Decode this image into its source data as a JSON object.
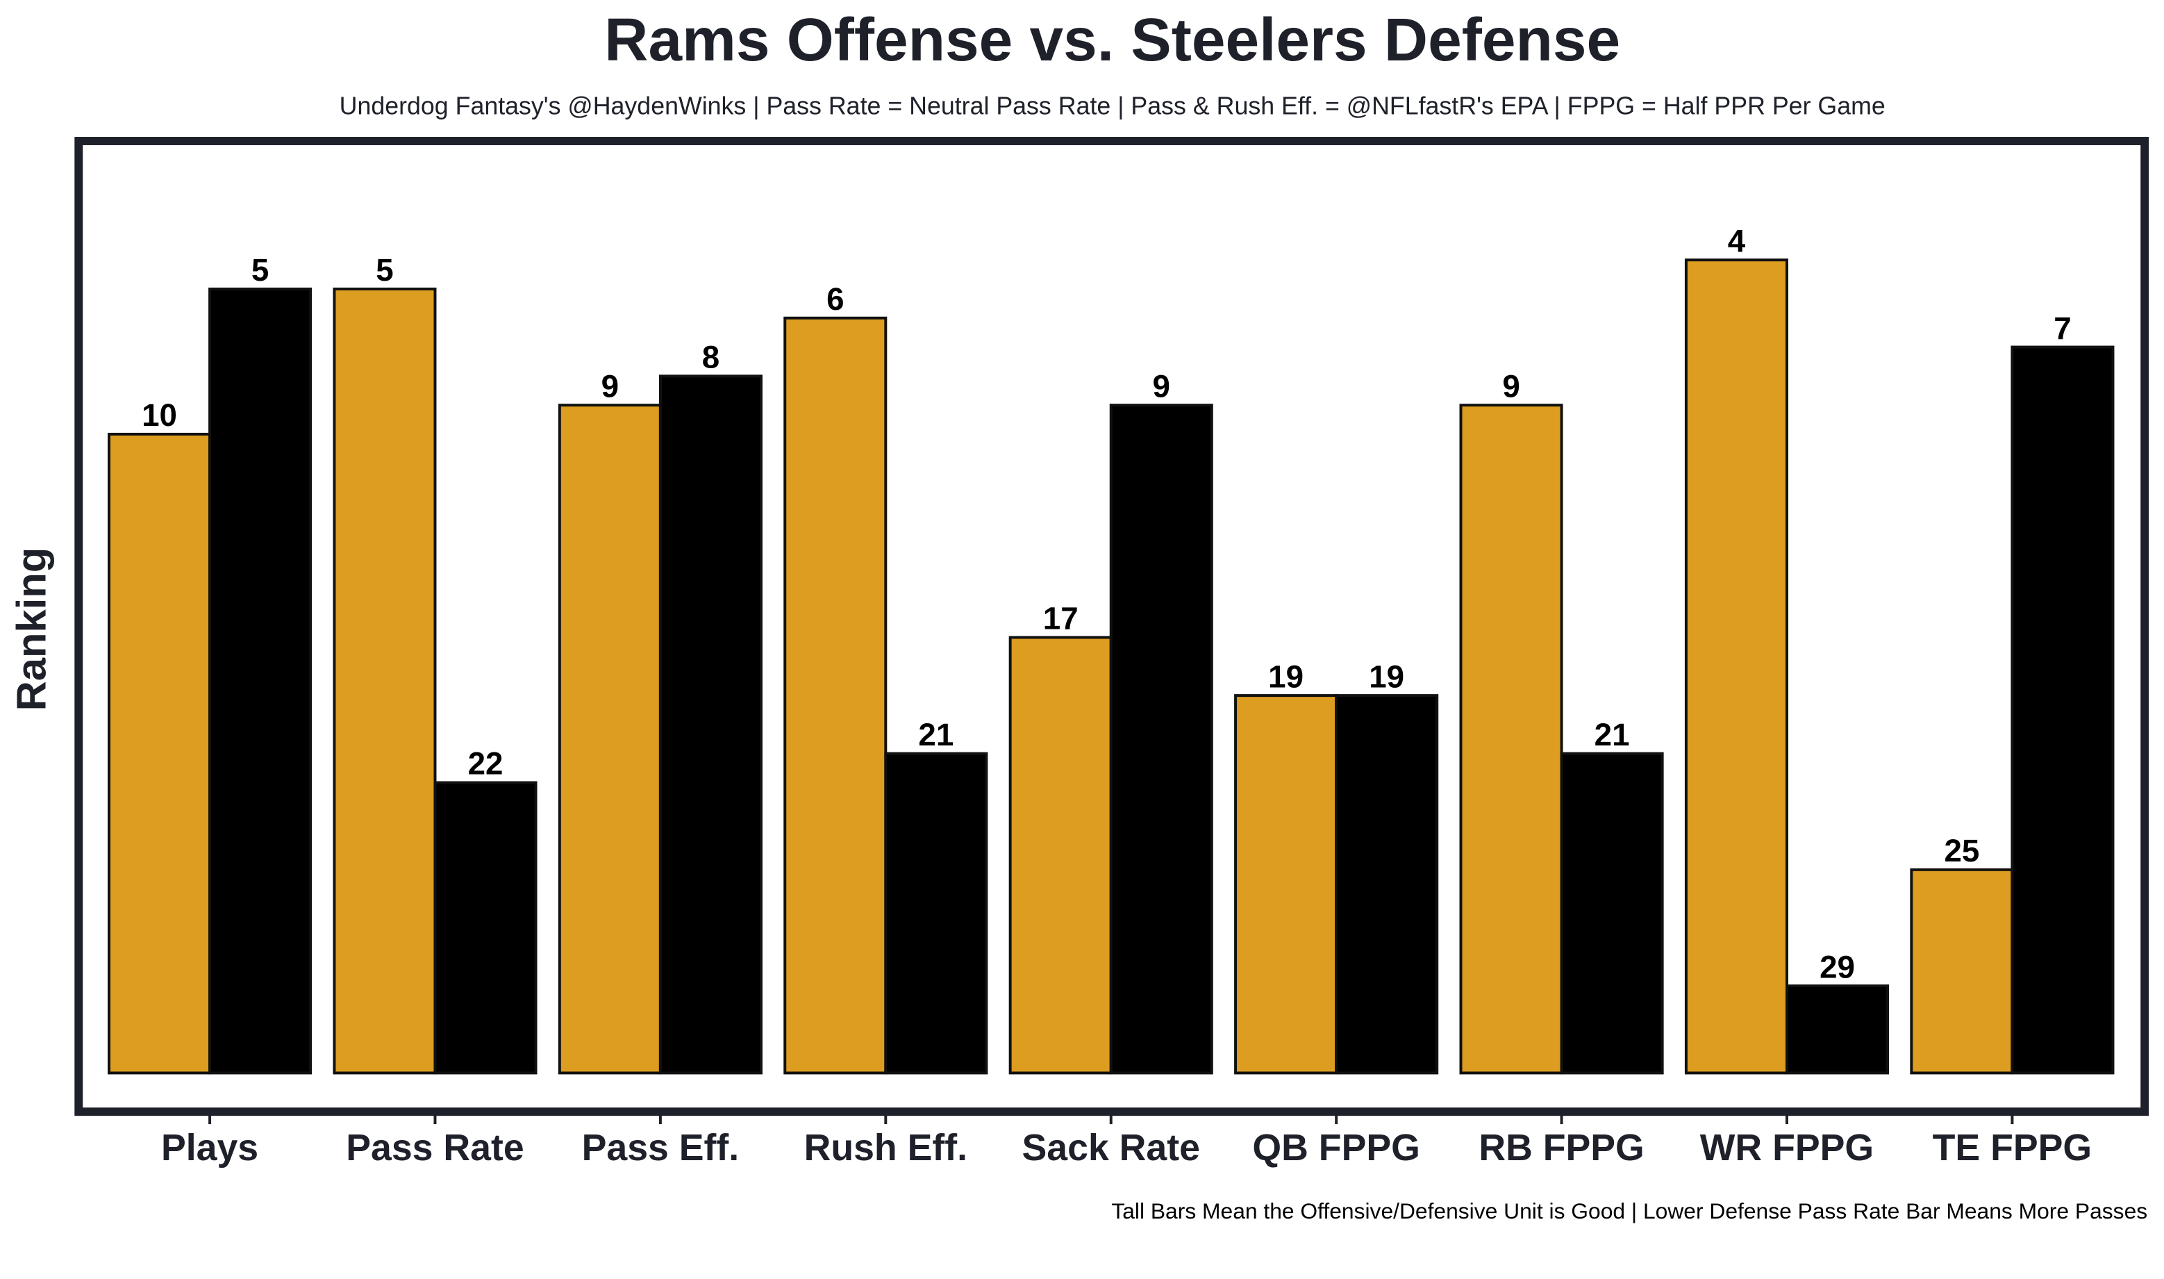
{
  "chart_data": {
    "type": "bar",
    "title": "Rams Offense vs. Steelers Defense",
    "subtitle": "Underdog Fantasy's @HaydenWinks | Pass Rate = Neutral Pass Rate | Pass & Rush Eff. = @NFLfastR's EPA | FPPG = Half PPR Per Game",
    "ylabel": "Ranking",
    "caption": "Tall Bars Mean the Offensive/Defensive Unit is Good | Lower Defense Pass Rate Bar Means More Passes",
    "categories": [
      "Plays",
      "Pass Rate",
      "Pass Eff.",
      "Rush Eff.",
      "Sack Rate",
      "QB FPPG",
      "RB FPPG",
      "WR FPPG",
      "TE FPPG"
    ],
    "series": [
      {
        "color": "#dc9d20",
        "values": [
          10,
          5,
          9,
          6,
          17,
          19,
          9,
          4,
          25
        ]
      },
      {
        "color": "#000000",
        "values": [
          5,
          22,
          8,
          21,
          9,
          19,
          21,
          29,
          7
        ]
      }
    ],
    "ylim": [
      32,
      0
    ]
  }
}
